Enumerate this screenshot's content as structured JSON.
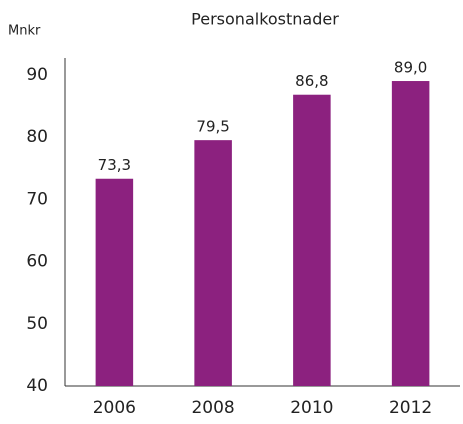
{
  "chart_data": {
    "type": "bar",
    "title": "Personalkostnader",
    "y_label": "Mnkr",
    "categories": [
      "2006",
      "2008",
      "2010",
      "2012"
    ],
    "values": [
      73.3,
      79.5,
      86.8,
      89.0
    ],
    "value_labels": [
      "73,3",
      "79,5",
      "86,8",
      "89,0"
    ],
    "color": "#8c217f",
    "ylim": [
      40,
      92.7
    ],
    "yticks": [
      40,
      50,
      60,
      70,
      80,
      90
    ],
    "grid": false
  }
}
